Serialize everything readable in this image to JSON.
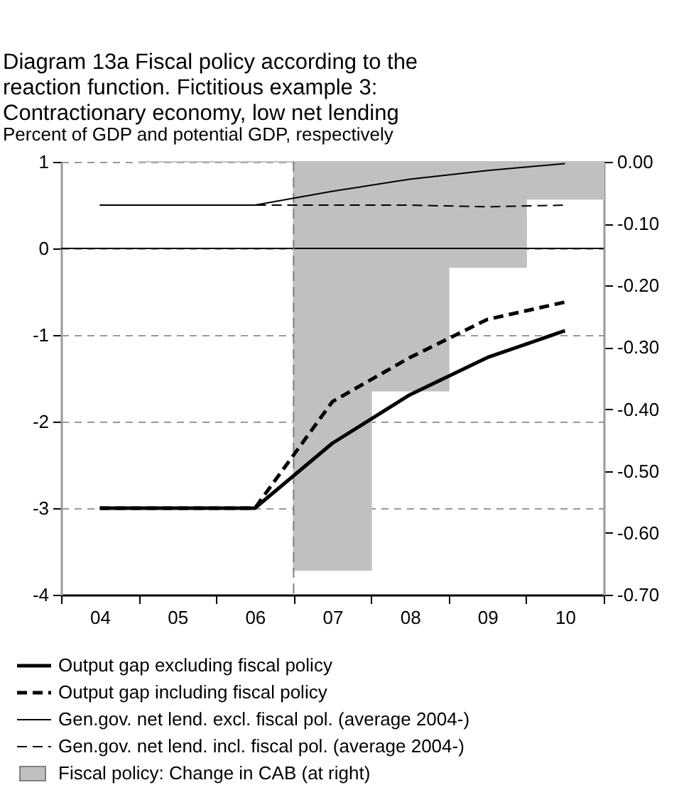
{
  "chart_data": {
    "type": "line",
    "title": "Diagram 13a Fiscal policy according to the reaction function. Fictitious example 3: Contractionary economy, low net lending",
    "subtitle": "Percent of GDP and potential GDP, respectively",
    "categories": [
      "04",
      "05",
      "06",
      "07",
      "08",
      "09",
      "10"
    ],
    "series": [
      {
        "name": "Output gap  excluding fiscal policy",
        "color": "#000000",
        "line_style": "solid",
        "values": [
          -3,
          -3,
          -3,
          -2.25,
          -1.69,
          -1.26,
          -0.95
        ]
      },
      {
        "name": "Output gap  including fiscal policy",
        "color": "#000000",
        "line_style": "dashed",
        "values": [
          -3,
          -3,
          -3,
          -1.77,
          -1.26,
          -0.82,
          -0.62
        ]
      },
      {
        "name": "Gen.gov. net lend. excl. fiscal pol. (average 2004-)",
        "color": "#000000",
        "line_style": "solid",
        "values": [
          0.5,
          0.5,
          0.5,
          0.66,
          0.8,
          0.9,
          0.98
        ]
      },
      {
        "name": "Gen.gov. net lend. incl. fiscal pol. (average 2004-)",
        "color": "#000000",
        "line_style": "dashed",
        "values": [
          0.5,
          0.5,
          0.5,
          0.5,
          0.5,
          0.48,
          0.5
        ]
      },
      {
        "name": "Fiscal policy: Change in CAB (at right)",
        "type": "bar",
        "axis": "y2",
        "color": "#c0c0c0",
        "values": [
          null,
          0,
          0,
          -0.66,
          -0.37,
          -0.17,
          -0.06
        ]
      }
    ],
    "ylim": [
      -4,
      1
    ],
    "yticks": [
      -4,
      -3,
      -2,
      -1,
      0,
      1
    ],
    "y2lim": [
      -0.7,
      0
    ],
    "y2ticks": [
      {
        "value": -0.7,
        "label": "-0.70"
      },
      {
        "value": -0.6,
        "label": "-0.60"
      },
      {
        "value": -0.5,
        "label": "-0.50"
      },
      {
        "value": -0.4,
        "label": "-0.40"
      },
      {
        "value": -0.3,
        "label": "-0.30"
      },
      {
        "value": -0.2,
        "label": "-0.20"
      },
      {
        "value": -0.1,
        "label": "-0.10"
      },
      {
        "value": 0,
        "label": "0.00"
      }
    ],
    "ref_lines": [
      {
        "axis": "y",
        "value": 0,
        "color": "#000000",
        "line_style": "solid"
      },
      {
        "axis": "x",
        "value": "07",
        "color": "#808080",
        "line_style": "dashed"
      }
    ],
    "grid": "y",
    "legend": "bottom"
  }
}
